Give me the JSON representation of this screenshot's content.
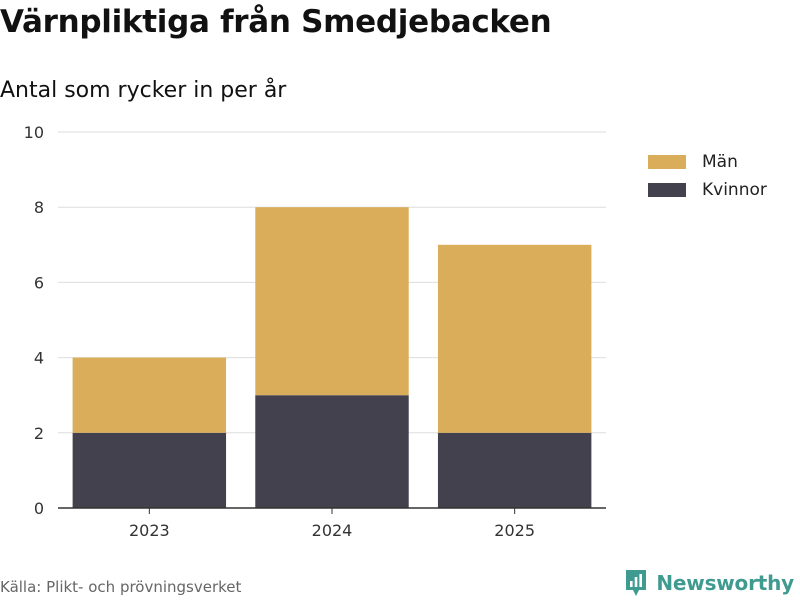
{
  "chart_data": {
    "type": "bar",
    "stacked": true,
    "title": "Värnpliktiga från Smedjebacken",
    "subtitle": "Antal som rycker in per år",
    "categories": [
      "2023",
      "2024",
      "2025"
    ],
    "series": [
      {
        "name": "Kvinnor",
        "values": [
          2,
          3,
          2
        ],
        "color": "#43414e"
      },
      {
        "name": "Män",
        "values": [
          2,
          5,
          5
        ],
        "color": "#d9ad5a"
      }
    ],
    "legend_order": [
      "Män",
      "Kvinnor"
    ],
    "ylim": [
      0,
      10
    ],
    "yticks": [
      0,
      2,
      4,
      6,
      8,
      10
    ],
    "ytick_labels": [
      "0",
      "2",
      "4",
      "6",
      "8",
      "10"
    ],
    "xlabel": "",
    "ylabel": "",
    "grid": true,
    "legend_position": "top-right"
  },
  "source": "Källa: Plikt- och prövningsverket",
  "brand": {
    "name": "Newsworthy",
    "icon": "newsworthy-logo-icon",
    "color": "#3f9a8f"
  },
  "legend": {
    "items": [
      {
        "label": "Män",
        "color": "#d9ad5a"
      },
      {
        "label": "Kvinnor",
        "color": "#43414e"
      }
    ]
  }
}
